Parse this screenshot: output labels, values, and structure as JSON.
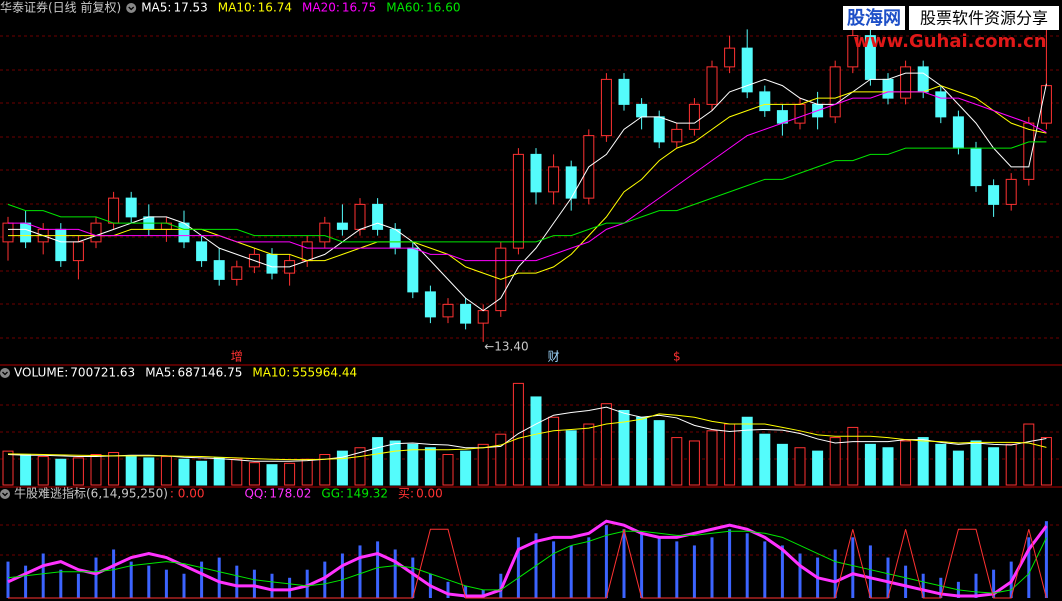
{
  "chart_data": [
    {
      "type": "candlestick",
      "title": "华泰证券(日线 前复权)",
      "ylim": [
        13.35,
        18.63
      ],
      "up_color": "#ff3232",
      "down_color": "#54fcfc",
      "open": [
        15.0,
        15.3,
        15.0,
        15.2,
        14.7,
        15.0,
        15.3,
        15.7,
        15.4,
        15.2,
        15.3,
        15.0,
        14.7,
        14.4,
        14.6,
        14.8,
        14.5,
        14.7,
        15.0,
        15.3,
        15.2,
        15.6,
        15.2,
        14.9,
        14.2,
        13.8,
        14.0,
        13.7,
        13.9,
        14.9,
        16.4,
        15.8,
        16.2,
        15.7,
        16.7,
        17.6,
        17.2,
        17.0,
        16.6,
        16.8,
        17.2,
        17.8,
        18.1,
        17.4,
        17.1,
        16.9,
        17.2,
        17.0,
        17.8,
        18.3,
        17.6,
        17.3,
        17.8,
        17.4,
        17.0,
        16.5,
        15.9,
        15.6,
        16.0,
        16.9
      ],
      "high": [
        15.4,
        15.5,
        15.3,
        15.3,
        15.1,
        15.4,
        15.8,
        15.8,
        15.6,
        15.4,
        15.5,
        15.1,
        14.9,
        14.7,
        14.9,
        14.9,
        14.8,
        15.1,
        15.4,
        15.6,
        15.7,
        15.7,
        15.3,
        15.0,
        14.3,
        14.1,
        14.1,
        14.0,
        15.0,
        16.5,
        16.5,
        16.4,
        16.3,
        16.8,
        17.7,
        17.7,
        17.3,
        17.1,
        16.9,
        17.3,
        17.9,
        18.3,
        18.4,
        17.5,
        17.2,
        17.3,
        17.4,
        17.9,
        18.5,
        18.4,
        17.7,
        17.9,
        17.9,
        17.5,
        17.1,
        16.6,
        16.0,
        16.1,
        17.0,
        18.6
      ],
      "low": [
        14.7,
        14.9,
        14.8,
        14.6,
        14.4,
        14.9,
        15.2,
        15.3,
        15.1,
        15.0,
        14.9,
        14.6,
        14.3,
        14.3,
        14.5,
        14.4,
        14.3,
        14.6,
        14.9,
        15.1,
        15.1,
        15.1,
        14.8,
        14.1,
        13.7,
        13.7,
        13.6,
        13.4,
        13.8,
        14.8,
        15.6,
        15.6,
        15.5,
        15.6,
        16.6,
        17.1,
        16.8,
        16.5,
        16.5,
        16.7,
        17.1,
        17.7,
        17.3,
        17.0,
        16.7,
        16.8,
        16.8,
        16.9,
        17.7,
        17.5,
        17.2,
        17.2,
        17.3,
        16.9,
        16.4,
        15.8,
        15.4,
        15.5,
        15.9,
        16.8
      ],
      "close": [
        15.3,
        15.0,
        15.2,
        14.7,
        15.0,
        15.3,
        15.7,
        15.4,
        15.2,
        15.3,
        15.0,
        14.7,
        14.4,
        14.6,
        14.8,
        14.5,
        14.7,
        15.0,
        15.3,
        15.2,
        15.6,
        15.2,
        14.9,
        14.2,
        13.8,
        14.0,
        13.7,
        13.9,
        14.9,
        16.4,
        15.8,
        16.2,
        15.7,
        16.7,
        17.6,
        17.2,
        17.0,
        16.6,
        16.8,
        17.2,
        17.8,
        18.1,
        17.4,
        17.1,
        16.9,
        17.2,
        17.0,
        17.8,
        18.3,
        17.6,
        17.3,
        17.8,
        17.4,
        17.0,
        16.5,
        15.9,
        15.6,
        16.0,
        16.9,
        17.5
      ],
      "series": [
        {
          "name": "MA5:",
          "color": "#ffffff",
          "value_label": "17.53",
          "values": [
            15.2,
            15.2,
            15.1,
            15.0,
            15.0,
            15.1,
            15.2,
            15.3,
            15.4,
            15.4,
            15.3,
            15.1,
            14.9,
            14.8,
            14.7,
            14.6,
            14.6,
            14.7,
            14.8,
            15.0,
            15.2,
            15.3,
            15.2,
            15.0,
            14.7,
            14.4,
            14.1,
            13.9,
            14.1,
            14.6,
            14.9,
            15.3,
            15.7,
            16.2,
            16.4,
            16.8,
            17.0,
            17.0,
            16.9,
            16.9,
            17.1,
            17.4,
            17.5,
            17.6,
            17.5,
            17.3,
            17.2,
            17.2,
            17.4,
            17.6,
            17.6,
            17.7,
            17.7,
            17.5,
            17.2,
            16.9,
            16.5,
            16.2,
            16.2,
            17.53
          ]
        },
        {
          "name": "MA10:",
          "color": "#ffff00",
          "value_label": "16.74",
          "values": [
            15.1,
            15.1,
            15.1,
            15.1,
            15.1,
            15.1,
            15.1,
            15.2,
            15.2,
            15.2,
            15.2,
            15.2,
            15.1,
            15.0,
            14.9,
            14.8,
            14.8,
            14.7,
            14.7,
            14.8,
            14.9,
            15.0,
            15.0,
            15.0,
            14.9,
            14.8,
            14.6,
            14.5,
            14.4,
            14.5,
            14.5,
            14.6,
            14.8,
            15.1,
            15.4,
            15.8,
            16.0,
            16.3,
            16.5,
            16.6,
            16.8,
            17.0,
            17.1,
            17.2,
            17.2,
            17.2,
            17.3,
            17.3,
            17.4,
            17.4,
            17.4,
            17.4,
            17.4,
            17.5,
            17.4,
            17.3,
            17.1,
            16.9,
            16.8,
            16.74
          ]
        },
        {
          "name": "MA20:",
          "color": "#ff00ff",
          "value_label": "16.75",
          "values": [
            15.3,
            15.3,
            15.2,
            15.2,
            15.2,
            15.1,
            15.1,
            15.1,
            15.1,
            15.1,
            15.1,
            15.1,
            15.1,
            15.0,
            15.0,
            15.0,
            15.0,
            14.9,
            14.9,
            14.9,
            14.9,
            14.9,
            14.9,
            14.9,
            14.8,
            14.8,
            14.7,
            14.7,
            14.7,
            14.7,
            14.7,
            14.8,
            14.9,
            15.0,
            15.2,
            15.3,
            15.5,
            15.7,
            15.9,
            16.1,
            16.3,
            16.5,
            16.7,
            16.8,
            16.9,
            17.0,
            17.1,
            17.2,
            17.3,
            17.3,
            17.4,
            17.4,
            17.4,
            17.3,
            17.3,
            17.2,
            17.1,
            17.0,
            16.9,
            16.75
          ]
        },
        {
          "name": "MA60:",
          "color": "#00e600",
          "value_label": "16.60",
          "values": [
            15.6,
            15.5,
            15.5,
            15.4,
            15.4,
            15.4,
            15.3,
            15.3,
            15.3,
            15.3,
            15.2,
            15.2,
            15.2,
            15.2,
            15.1,
            15.1,
            15.1,
            15.1,
            15.1,
            15.0,
            15.0,
            15.0,
            15.0,
            15.0,
            15.0,
            15.0,
            15.0,
            15.0,
            15.0,
            15.0,
            15.0,
            15.1,
            15.1,
            15.2,
            15.3,
            15.3,
            15.4,
            15.5,
            15.5,
            15.6,
            15.7,
            15.8,
            15.9,
            16.0,
            16.0,
            16.1,
            16.2,
            16.3,
            16.3,
            16.4,
            16.4,
            16.5,
            16.5,
            16.5,
            16.5,
            16.5,
            16.5,
            16.5,
            16.6,
            16.6
          ]
        }
      ],
      "annotations": [
        {
          "text": "←13.40",
          "index": 27
        }
      ],
      "markers": [
        {
          "text": "增",
          "index": 13,
          "color": "#ff3232"
        },
        {
          "text": "财",
          "index": 31,
          "color": "#a0d8ff"
        },
        {
          "text": "$",
          "index": 38,
          "color": "#ff3232"
        }
      ]
    },
    {
      "type": "volume",
      "ylim": [
        0,
        1550000
      ],
      "values": [
        500000,
        450000,
        420000,
        380000,
        400000,
        450000,
        480000,
        420000,
        400000,
        420000,
        380000,
        350000,
        400000,
        380000,
        330000,
        300000,
        320000,
        380000,
        450000,
        500000,
        550000,
        700000,
        650000,
        600000,
        550000,
        450000,
        500000,
        600000,
        750000,
        1500000,
        1300000,
        1000000,
        800000,
        900000,
        1200000,
        1100000,
        1000000,
        950000,
        700000,
        650000,
        800000,
        900000,
        1000000,
        750000,
        600000,
        550000,
        500000,
        700000,
        850000,
        600000,
        550000,
        650000,
        700000,
        600000,
        500000,
        650000,
        550000,
        600000,
        900000,
        700721.63
      ],
      "name": "VOLUME:",
      "value_label": "700721.63",
      "name_color": "#ffffff",
      "series": [
        {
          "name": "MA5:",
          "color": "#ffffff",
          "value_label": "687146.75",
          "values": [
            450000,
            440000,
            440000,
            430000,
            420000,
            420000,
            430000,
            440000,
            440000,
            430000,
            410000,
            400000,
            390000,
            370000,
            350000,
            350000,
            350000,
            360000,
            380000,
            410000,
            480000,
            550000,
            610000,
            620000,
            600000,
            590000,
            550000,
            550000,
            570000,
            760000,
            900000,
            1030000,
            1070000,
            1100000,
            1150000,
            1060000,
            1000000,
            1030000,
            990000,
            880000,
            820000,
            790000,
            810000,
            820000,
            810000,
            760000,
            680000,
            620000,
            640000,
            640000,
            640000,
            670000,
            670000,
            630000,
            600000,
            620000,
            600000,
            590000,
            640000,
            687146.75
          ]
        },
        {
          "name": "MA10:",
          "color": "#ffff00",
          "value_label": "555964.44",
          "values": [
            460000,
            455000,
            450000,
            445000,
            440000,
            435000,
            430000,
            430000,
            430000,
            430000,
            425000,
            420000,
            410000,
            400000,
            390000,
            380000,
            375000,
            375000,
            380000,
            390000,
            420000,
            460000,
            500000,
            520000,
            520000,
            520000,
            530000,
            550000,
            590000,
            690000,
            750000,
            800000,
            820000,
            840000,
            900000,
            930000,
            970000,
            1050000,
            1030000,
            1000000,
            940000,
            900000,
            900000,
            900000,
            850000,
            800000,
            740000,
            720000,
            720000,
            720000,
            700000,
            670000,
            650000,
            640000,
            620000,
            630000,
            630000,
            630000,
            620000,
            555964.44
          ]
        }
      ]
    },
    {
      "type": "indicator",
      "title": "牛股难逃指标(6,14,95,250)",
      "title_value_label": ": 0.00",
      "ylim": [
        0,
        230
      ],
      "color": "#3c64ff",
      "values": [
        90,
        80,
        110,
        70,
        60,
        100,
        120,
        90,
        80,
        70,
        60,
        90,
        100,
        80,
        70,
        60,
        50,
        70,
        90,
        110,
        130,
        140,
        120,
        100,
        60,
        40,
        30,
        20,
        60,
        150,
        160,
        140,
        130,
        150,
        180,
        170,
        160,
        150,
        140,
        130,
        150,
        170,
        160,
        140,
        130,
        110,
        100,
        120,
        150,
        130,
        100,
        80,
        60,
        50,
        40,
        60,
        70,
        90,
        150,
        190
      ],
      "series": [
        {
          "name": "QQ:",
          "color": "#ff32ff",
          "line_width": 3,
          "value_label": "178.02",
          "values": [
            40,
            60,
            80,
            90,
            70,
            60,
            80,
            100,
            110,
            100,
            80,
            60,
            40,
            30,
            30,
            20,
            20,
            30,
            50,
            80,
            100,
            110,
            90,
            60,
            30,
            10,
            5,
            5,
            20,
            120,
            140,
            150,
            150,
            160,
            190,
            180,
            160,
            150,
            150,
            160,
            170,
            180,
            170,
            150,
            120,
            80,
            50,
            40,
            60,
            50,
            40,
            30,
            20,
            10,
            5,
            5,
            10,
            40,
            120,
            178.02
          ]
        },
        {
          "name": "GG:",
          "color": "#00e600",
          "line_width": 1,
          "value_label": "149.32",
          "values": [
            50,
            55,
            60,
            65,
            65,
            65,
            70,
            80,
            85,
            90,
            85,
            75,
            65,
            55,
            45,
            40,
            35,
            30,
            35,
            45,
            60,
            75,
            80,
            75,
            60,
            45,
            30,
            20,
            20,
            50,
            80,
            110,
            130,
            140,
            155,
            165,
            165,
            160,
            155,
            155,
            160,
            165,
            165,
            160,
            150,
            130,
            110,
            90,
            80,
            70,
            60,
            50,
            40,
            30,
            20,
            15,
            12,
            20,
            60,
            149.32
          ]
        },
        {
          "name": "买:",
          "color": "#ff3232",
          "line_width": 1,
          "value_label": "0.00",
          "values": [
            0,
            0,
            0,
            0,
            0,
            0,
            0,
            0,
            0,
            0,
            0,
            0,
            0,
            0,
            0,
            0,
            0,
            0,
            0,
            0,
            0,
            0,
            0,
            0,
            170,
            170,
            0,
            0,
            0,
            0,
            0,
            0,
            0,
            0,
            0,
            170,
            0,
            0,
            0,
            0,
            0,
            0,
            0,
            0,
            0,
            0,
            0,
            0,
            170,
            0,
            0,
            170,
            0,
            0,
            170,
            170,
            0,
            0,
            170,
            0
          ]
        }
      ]
    }
  ],
  "watermark": {
    "logo": "股海网",
    "slogan": "股票软件资源分享",
    "url": "www.Guhai.com.cn"
  }
}
